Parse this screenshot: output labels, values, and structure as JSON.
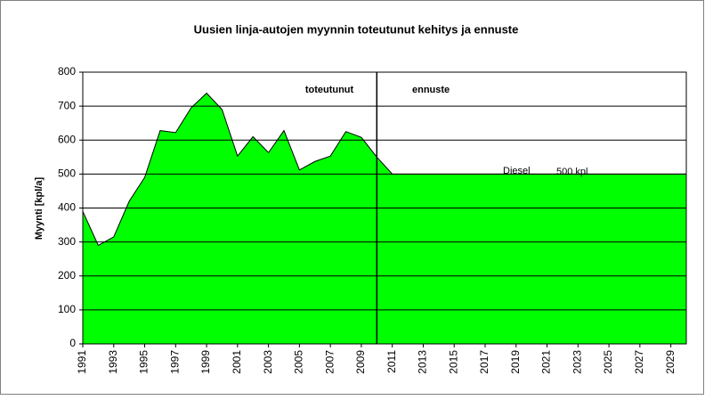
{
  "chart_data": {
    "type": "area",
    "title": "Uusien linja-autojen myynnin toteutunut kehitys ja ennuste",
    "y_label": "Myynti [kpl/a]",
    "x": [
      1991,
      1992,
      1993,
      1994,
      1995,
      1996,
      1997,
      1998,
      1999,
      2000,
      2001,
      2002,
      2003,
      2004,
      2005,
      2006,
      2007,
      2008,
      2009,
      2010,
      2011,
      2012,
      2013,
      2014,
      2015,
      2016,
      2017,
      2018,
      2019,
      2020,
      2021,
      2022,
      2023,
      2024,
      2025,
      2026,
      2027,
      2028,
      2029,
      2030
    ],
    "values": [
      390,
      290,
      315,
      420,
      490,
      628,
      622,
      695,
      738,
      690,
      553,
      610,
      563,
      628,
      512,
      537,
      553,
      625,
      608,
      550,
      500,
      500,
      500,
      500,
      500,
      500,
      500,
      500,
      500,
      500,
      500,
      500,
      500,
      500,
      500,
      500,
      500,
      500,
      500,
      500
    ],
    "color": "#00ff00",
    "xlim": [
      1991,
      2030
    ],
    "xticks": [
      1991,
      1993,
      1995,
      1997,
      1999,
      2001,
      2003,
      2005,
      2007,
      2009,
      2011,
      2013,
      2015,
      2017,
      2019,
      2021,
      2023,
      2025,
      2027,
      2029
    ],
    "ylim": [
      0,
      800
    ],
    "yticks": [
      0,
      100,
      200,
      300,
      400,
      500,
      600,
      700,
      800
    ],
    "grid": true,
    "divider_x": 2010,
    "annotations": [
      "toteutunut",
      "ennuste",
      "Diesel",
      "500 kpl"
    ]
  }
}
